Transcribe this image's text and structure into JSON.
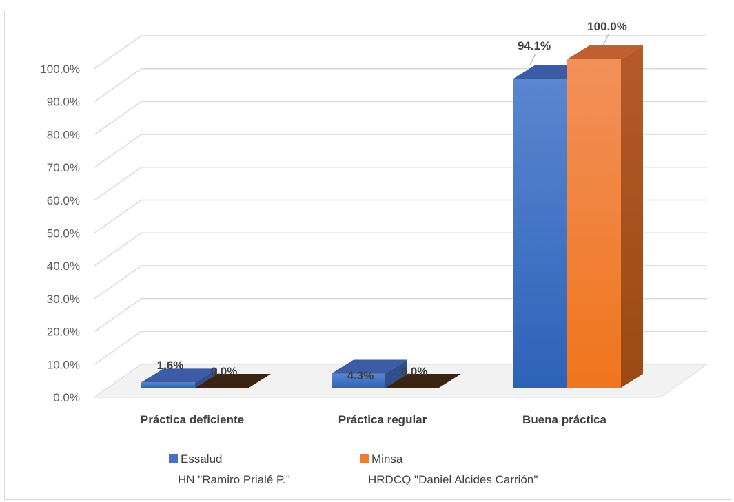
{
  "chart_data": {
    "type": "bar",
    "style": "3d-clustered-column",
    "categories": [
      "Práctica deficiente",
      "Práctica regular",
      "Buena práctica"
    ],
    "series": [
      {
        "name": "Essalud",
        "subname": "HN \"Ramiro Prialé P.\"",
        "values": [
          1.6,
          4.3,
          94.1
        ],
        "labels": [
          "1.6%",
          "4.3%",
          "94.1%"
        ],
        "color": "#4472C4",
        "color_top": "#3C5DA6",
        "color_side": "#2F4F8F"
      },
      {
        "name": "Minsa",
        "subname": "HRDCQ \"Daniel Alcides Carrión\"",
        "values": [
          0.0,
          0.0,
          100.0
        ],
        "labels": [
          "0.0%",
          "0.0%",
          "100.0%"
        ],
        "color": "#ED7D31",
        "color_top": "#C06030",
        "color_side": "#A0521E"
      }
    ],
    "yticks": [
      "0.0%",
      "10.0%",
      "20.0%",
      "30.0%",
      "40.0%",
      "50.0%",
      "60.0%",
      "70.0%",
      "80.0%",
      "90.0%",
      "100.0%"
    ],
    "ylim": [
      0,
      100
    ],
    "grid": true,
    "legend_position": "bottom"
  }
}
